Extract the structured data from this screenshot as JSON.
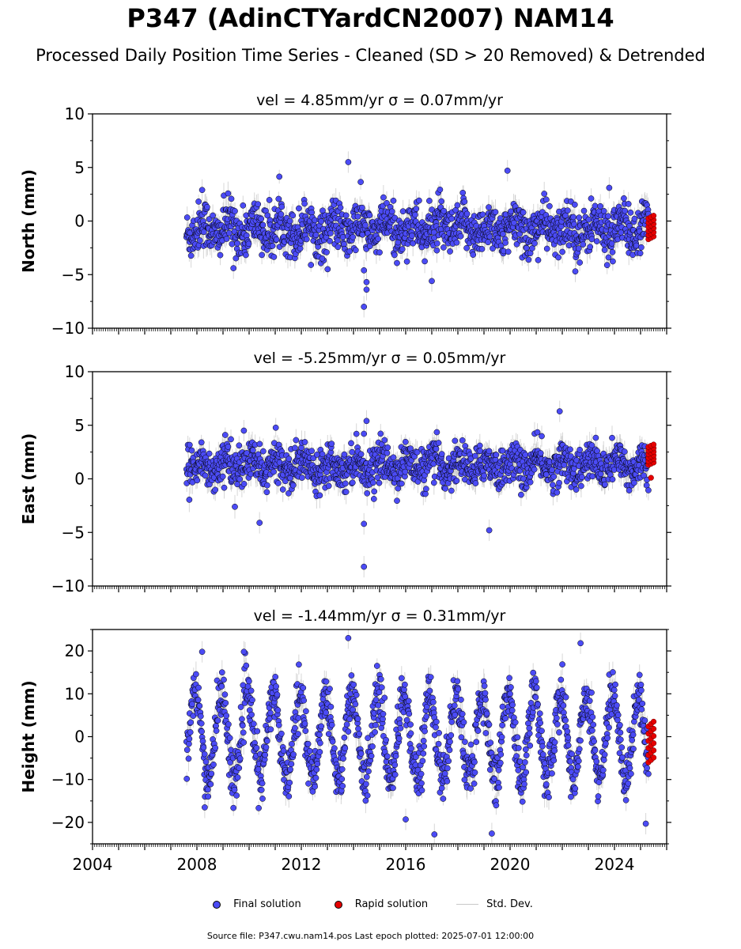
{
  "title": "P347 (AdinCTYardCN2007) NAM14",
  "subtitle": "Processed Daily Position Time Series - Cleaned (SD > 20 Removed) & Detrended",
  "legend": {
    "final": "Final solution",
    "rapid": "Rapid solution",
    "stddev": "Std. Dev."
  },
  "footer": "Source file: P347.cwu.nam14.pos  Last epoch plotted: 2025-07-01 12:00:00",
  "colors": {
    "final": "#4b4bf5",
    "rapid": "#e60000",
    "stddev": "#bdbdbd"
  },
  "chart_data": [
    {
      "type": "scatter",
      "title": "vel = 4.85mm/yr   σ = 0.07mm/yr",
      "ylabel": "North (mm)",
      "xlim": [
        2004,
        2026
      ],
      "ylim": [
        -10,
        10
      ],
      "yticks": [
        -10,
        -5,
        0,
        5,
        10
      ],
      "xticks": [
        2004,
        2008,
        2012,
        2016,
        2020,
        2024
      ],
      "series": [
        {
          "name": "Final solution",
          "x_range": [
            2007.6,
            2025.3
          ],
          "typical_range": [
            -3.5,
            2
          ],
          "outliers": [
            [
              2013.8,
              5.5
            ],
            [
              2019.9,
              4.7
            ],
            [
              2014.4,
              -8.0
            ],
            [
              2014.5,
              -6.4
            ],
            [
              2014.5,
              -5.7
            ],
            [
              2014.4,
              -4.6
            ],
            [
              2017.0,
              -5.6
            ],
            [
              2022.5,
              -4.7
            ],
            [
              2012.8,
              -3.5
            ],
            [
              2009.4,
              -4.4
            ],
            [
              2023.8,
              3.1
            ],
            [
              2008.2,
              2.9
            ]
          ]
        },
        {
          "name": "Rapid solution",
          "x_range": [
            2025.3,
            2025.5
          ],
          "typical_range": [
            -1.7,
            0.5
          ]
        }
      ]
    },
    {
      "type": "scatter",
      "title": "vel = -5.25mm/yr   σ = 0.05mm/yr",
      "ylabel": "East (mm)",
      "xlim": [
        2004,
        2026
      ],
      "ylim": [
        -10,
        10
      ],
      "yticks": [
        -10,
        -5,
        0,
        5,
        10
      ],
      "xticks": [
        2004,
        2008,
        2012,
        2016,
        2020,
        2024
      ],
      "series": [
        {
          "name": "Final solution",
          "x_range": [
            2007.6,
            2025.3
          ],
          "typical_range": [
            -1,
            3.5
          ],
          "outliers": [
            [
              2021.9,
              6.3
            ],
            [
              2014.4,
              -8.2
            ],
            [
              2014.4,
              -4.2
            ],
            [
              2019.2,
              -4.8
            ],
            [
              2010.4,
              -4.1
            ],
            [
              2014.5,
              5.4
            ],
            [
              2009.8,
              4.5
            ]
          ]
        },
        {
          "name": "Rapid solution",
          "x_range": [
            2025.3,
            2025.5
          ],
          "typical_range": [
            1.3,
            3.2
          ],
          "outliers": [
            [
              2025.4,
              0.1
            ]
          ]
        }
      ]
    },
    {
      "type": "scatter",
      "title": "vel = -1.44mm/yr   σ = 0.31mm/yr",
      "ylabel": "Height (mm)",
      "xlim": [
        2004,
        2026
      ],
      "ylim": [
        -25,
        25
      ],
      "yticks": [
        -20,
        -10,
        0,
        10,
        20
      ],
      "xticks": [
        2004,
        2008,
        2012,
        2016,
        2020,
        2024
      ],
      "series": [
        {
          "name": "Final solution",
          "x_range": [
            2007.6,
            2025.3
          ],
          "typical_range": [
            -15,
            15
          ],
          "outliers": [
            [
              2013.8,
              23
            ],
            [
              2022.7,
              21.8
            ],
            [
              2008.2,
              19.8
            ],
            [
              2009.8,
              19.8
            ],
            [
              2017.1,
              -22.8
            ],
            [
              2019.3,
              -22.6
            ],
            [
              2025.2,
              -20.3
            ],
            [
              2008.3,
              -16.5
            ],
            [
              2016.0,
              -19.3
            ]
          ]
        },
        {
          "name": "Rapid solution",
          "x_range": [
            2025.3,
            2025.5
          ],
          "typical_range": [
            -6,
            3.5
          ]
        }
      ]
    }
  ]
}
